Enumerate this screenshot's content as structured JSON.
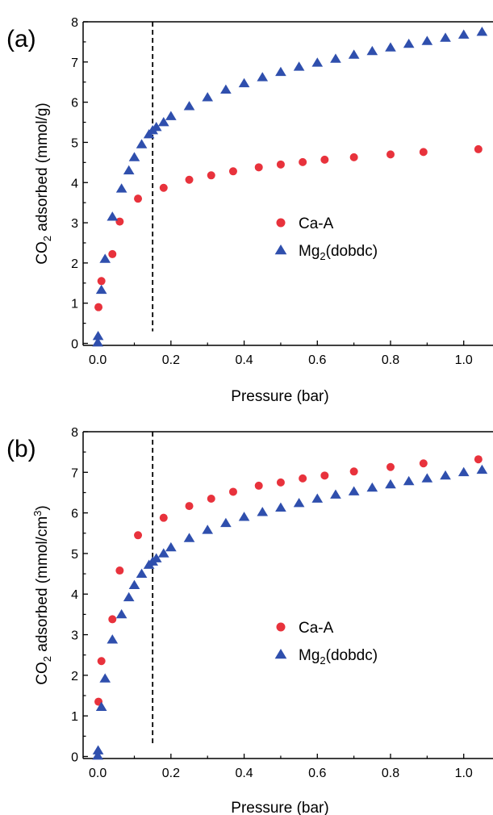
{
  "colors": {
    "ca_a": "#e8323c",
    "mg2": "#2f4fad",
    "axis": "#000000"
  },
  "chart_data": [
    {
      "type": "scatter",
      "panel_label": "(a)",
      "xlabel": "Pressure (bar)",
      "ylabel": {
        "prefix": "CO",
        "sub": "2",
        "suffix": " adsorbed (mmol/g)",
        "sup": ""
      },
      "xlim": [
        -0.04,
        1.08
      ],
      "ylim": [
        -0.05,
        8
      ],
      "xticks": [
        0.0,
        0.2,
        0.4,
        0.6,
        0.8,
        1.0
      ],
      "xtick_labels": [
        "0.0",
        "0.2",
        "0.4",
        "0.6",
        "0.8",
        "1.0"
      ],
      "yticks": [
        0,
        1,
        2,
        3,
        4,
        5,
        6,
        7,
        8
      ],
      "ytick_labels": [
        "0",
        "1",
        "2",
        "3",
        "4",
        "5",
        "6",
        "7",
        "8"
      ],
      "vline_x": 0.15,
      "legend_position": "center-right",
      "series": [
        {
          "name": "Ca-A",
          "marker": "circle",
          "x": [
            0.002,
            0.01,
            0.04,
            0.06,
            0.11,
            0.18,
            0.25,
            0.31,
            0.37,
            0.44,
            0.5,
            0.56,
            0.62,
            0.7,
            0.8,
            0.89,
            1.04
          ],
          "y": [
            0.9,
            1.55,
            2.22,
            3.03,
            3.6,
            3.87,
            4.07,
            4.18,
            4.28,
            4.38,
            4.45,
            4.51,
            4.57,
            4.63,
            4.7,
            4.76,
            4.83
          ]
        },
        {
          "name": "Mg2(dobdc)",
          "name_parts": {
            "prefix": "Mg",
            "sub": "2",
            "suffix": "(dobdc)"
          },
          "marker": "triangle",
          "x": [
            0.0,
            0.001,
            0.01,
            0.02,
            0.04,
            0.065,
            0.085,
            0.1,
            0.12,
            0.14,
            0.15,
            0.16,
            0.18,
            0.2,
            0.25,
            0.3,
            0.35,
            0.4,
            0.45,
            0.5,
            0.55,
            0.6,
            0.65,
            0.7,
            0.75,
            0.8,
            0.85,
            0.9,
            0.95,
            1.0,
            1.05
          ],
          "y": [
            0.02,
            0.18,
            1.33,
            2.1,
            3.15,
            3.85,
            4.3,
            4.63,
            4.95,
            5.2,
            5.3,
            5.38,
            5.5,
            5.65,
            5.9,
            6.12,
            6.31,
            6.47,
            6.62,
            6.75,
            6.88,
            6.98,
            7.08,
            7.18,
            7.27,
            7.36,
            7.45,
            7.52,
            7.6,
            7.68,
            7.75
          ]
        }
      ]
    },
    {
      "type": "scatter",
      "panel_label": "(b)",
      "xlabel": "Pressure (bar)",
      "ylabel": {
        "prefix": "CO",
        "sub": "2",
        "suffix": " adsorbed (mmol/cm",
        "sup": "3",
        "end": ")"
      },
      "xlim": [
        -0.04,
        1.08
      ],
      "ylim": [
        -0.05,
        8
      ],
      "xticks": [
        0.0,
        0.2,
        0.4,
        0.6,
        0.8,
        1.0
      ],
      "xtick_labels": [
        "0.0",
        "0.2",
        "0.4",
        "0.6",
        "0.8",
        "1.0"
      ],
      "yticks": [
        0,
        1,
        2,
        3,
        4,
        5,
        6,
        7,
        8
      ],
      "ytick_labels": [
        "0",
        "1",
        "2",
        "3",
        "4",
        "5",
        "6",
        "7",
        "8"
      ],
      "vline_x": 0.15,
      "legend_position": "center-right",
      "series": [
        {
          "name": "Ca-A",
          "marker": "circle",
          "x": [
            0.002,
            0.01,
            0.04,
            0.06,
            0.11,
            0.18,
            0.25,
            0.31,
            0.37,
            0.44,
            0.5,
            0.56,
            0.62,
            0.7,
            0.8,
            0.89,
            1.04
          ],
          "y": [
            1.35,
            2.35,
            3.38,
            4.58,
            5.45,
            5.88,
            6.17,
            6.35,
            6.52,
            6.67,
            6.75,
            6.85,
            6.92,
            7.02,
            7.13,
            7.22,
            7.32
          ]
        },
        {
          "name": "Mg2(dobdc)",
          "name_parts": {
            "prefix": "Mg",
            "sub": "2",
            "suffix": "(dobdc)"
          },
          "marker": "triangle",
          "x": [
            0.0,
            0.001,
            0.01,
            0.02,
            0.04,
            0.065,
            0.085,
            0.1,
            0.12,
            0.14,
            0.15,
            0.16,
            0.18,
            0.2,
            0.25,
            0.3,
            0.35,
            0.4,
            0.45,
            0.5,
            0.55,
            0.6,
            0.65,
            0.7,
            0.75,
            0.8,
            0.85,
            0.9,
            0.95,
            1.0,
            1.05
          ],
          "y": [
            0.02,
            0.15,
            1.22,
            1.92,
            2.88,
            3.5,
            3.92,
            4.22,
            4.5,
            4.72,
            4.8,
            4.88,
            5.0,
            5.15,
            5.38,
            5.58,
            5.75,
            5.9,
            6.02,
            6.13,
            6.24,
            6.35,
            6.45,
            6.53,
            6.62,
            6.7,
            6.78,
            6.85,
            6.92,
            7.0,
            7.06
          ]
        }
      ]
    }
  ]
}
